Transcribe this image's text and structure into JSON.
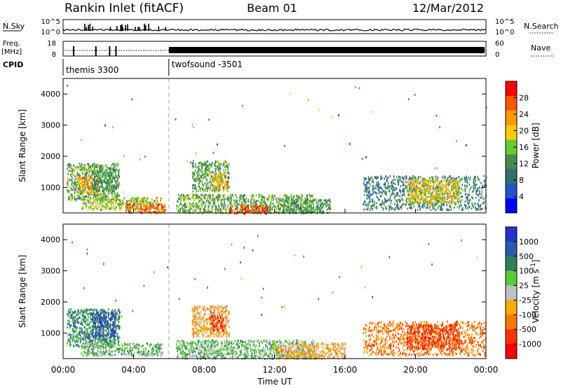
{
  "header": {
    "station": "Rankin Inlet (fitACF)",
    "beam": "Beam 01",
    "date": "12/Mar/2012"
  },
  "colors": {
    "gate": "#aaaaaa"
  },
  "top_panels": {
    "nsky": {
      "label": "N.Sky",
      "tick_top": "10^5",
      "tick_bottom": "10^0",
      "right_label": "N.Search",
      "right_tick_top": "10^5",
      "right_tick_bottom": "10^0"
    },
    "freq": {
      "label_1": "Freq.",
      "label_2": "[MHz]",
      "tick_top": "18",
      "tick_bottom": "8",
      "right_label": "Nave",
      "right_tick_top": "60",
      "right_tick_bottom": "0"
    },
    "cpid": {
      "label": "CPID",
      "programs": [
        {
          "name": "themis 3300",
          "start_hour": 0
        },
        {
          "name": "twofsound -3501",
          "start_hour": 6
        }
      ]
    }
  },
  "chart_data": [
    {
      "type": "heatmap",
      "title": "Power",
      "xlabel": "Time UT",
      "ylabel": "Slant Range [km]",
      "x_ticks": [
        "00:00",
        "04:00",
        "08:00",
        "12:00",
        "16:00",
        "20:00",
        "00:00"
      ],
      "x_range_hours": [
        0,
        24
      ],
      "y_range_km": [
        180,
        4500
      ],
      "y_ticks": [
        1000,
        2000,
        3000,
        4000
      ],
      "colorbar": {
        "label": "Power [dB]",
        "range": [
          0,
          32
        ],
        "ticks": [
          4,
          8,
          12,
          16,
          20,
          24,
          28
        ],
        "colors": [
          "#0000ff",
          "#2255cc",
          "#2e6f6f",
          "#4a8a50",
          "#66cc33",
          "#ffcc00",
          "#ff9900",
          "#ff5500",
          "#ff0000"
        ]
      },
      "echo_regions": [
        {
          "start_hour": 0.2,
          "end_hour": 3.2,
          "range_km": [
            600,
            1800
          ],
          "value": 14
        },
        {
          "start_hour": 0.8,
          "end_hour": 2.0,
          "range_km": [
            800,
            1400
          ],
          "value": 22
        },
        {
          "start_hour": 1.6,
          "end_hour": 3.0,
          "range_km": [
            900,
            1700
          ],
          "value": 12
        },
        {
          "start_hour": 1.0,
          "end_hour": 5.6,
          "range_km": [
            300,
            700
          ],
          "value": 16
        },
        {
          "start_hour": 3.5,
          "end_hour": 5.8,
          "range_km": [
            200,
            500
          ],
          "value": 26
        },
        {
          "start_hour": 7.3,
          "end_hour": 9.4,
          "range_km": [
            900,
            1900
          ],
          "value": 14
        },
        {
          "start_hour": 8.5,
          "end_hour": 9.3,
          "range_km": [
            1000,
            1500
          ],
          "value": 22
        },
        {
          "start_hour": 6.4,
          "end_hour": 14.2,
          "range_km": [
            200,
            800
          ],
          "value": 14
        },
        {
          "start_hour": 9.4,
          "end_hour": 11.6,
          "range_km": [
            180,
            450
          ],
          "value": 28
        },
        {
          "start_hour": 12.3,
          "end_hour": 15.2,
          "range_km": [
            200,
            650
          ],
          "value": 12
        },
        {
          "start_hour": 17.0,
          "end_hour": 24.0,
          "range_km": [
            300,
            1400
          ],
          "value": 10
        },
        {
          "start_hour": 19.5,
          "end_hour": 22.5,
          "range_km": [
            500,
            1300
          ],
          "value": 20
        }
      ]
    },
    {
      "type": "heatmap",
      "title": "Velocity",
      "xlabel": "Time UT",
      "ylabel": "Slant Range [km]",
      "x_ticks": [
        "00:00",
        "04:00",
        "08:00",
        "12:00",
        "16:00",
        "20:00",
        "00:00"
      ],
      "x_range_hours": [
        0,
        24
      ],
      "y_range_km": [
        180,
        4500
      ],
      "y_ticks": [
        1000,
        2000,
        3000,
        4000
      ],
      "colorbar": {
        "label": "Velocity [m s^-1]",
        "tick_labels": [
          "1000",
          "500",
          "100",
          "25",
          "-25",
          "-100",
          "-500",
          "-1000"
        ],
        "colors": [
          "#2233cc",
          "#2a5aaa",
          "#2f7f5f",
          "#55cc33",
          "#c0c0c0",
          "#ffaa00",
          "#ff7700",
          "#ff3300",
          "#ff0000"
        ]
      },
      "echo_regions": [
        {
          "start_hour": 0.2,
          "end_hour": 3.2,
          "range_km": [
            600,
            1800
          ],
          "value_class": 2
        },
        {
          "start_hour": 1.6,
          "end_hour": 3.0,
          "range_km": [
            900,
            1700
          ],
          "value_class": 1
        },
        {
          "start_hour": 1.0,
          "end_hour": 5.6,
          "range_km": [
            300,
            700
          ],
          "value_class": 3
        },
        {
          "start_hour": 7.3,
          "end_hour": 9.4,
          "range_km": [
            900,
            1900
          ],
          "value_class": 5
        },
        {
          "start_hour": 8.3,
          "end_hour": 9.2,
          "range_km": [
            1100,
            1600
          ],
          "value_class": 7
        },
        {
          "start_hour": 6.4,
          "end_hour": 14.2,
          "range_km": [
            200,
            800
          ],
          "value_class": 3
        },
        {
          "start_hour": 12.0,
          "end_hour": 16.0,
          "range_km": [
            200,
            700
          ],
          "value_class": 5
        },
        {
          "start_hour": 17.0,
          "end_hour": 24.0,
          "range_km": [
            300,
            1400
          ],
          "value_class": 6
        },
        {
          "start_hour": 19.5,
          "end_hour": 22.5,
          "range_km": [
            500,
            1300
          ],
          "value_class": 7
        }
      ]
    }
  ]
}
